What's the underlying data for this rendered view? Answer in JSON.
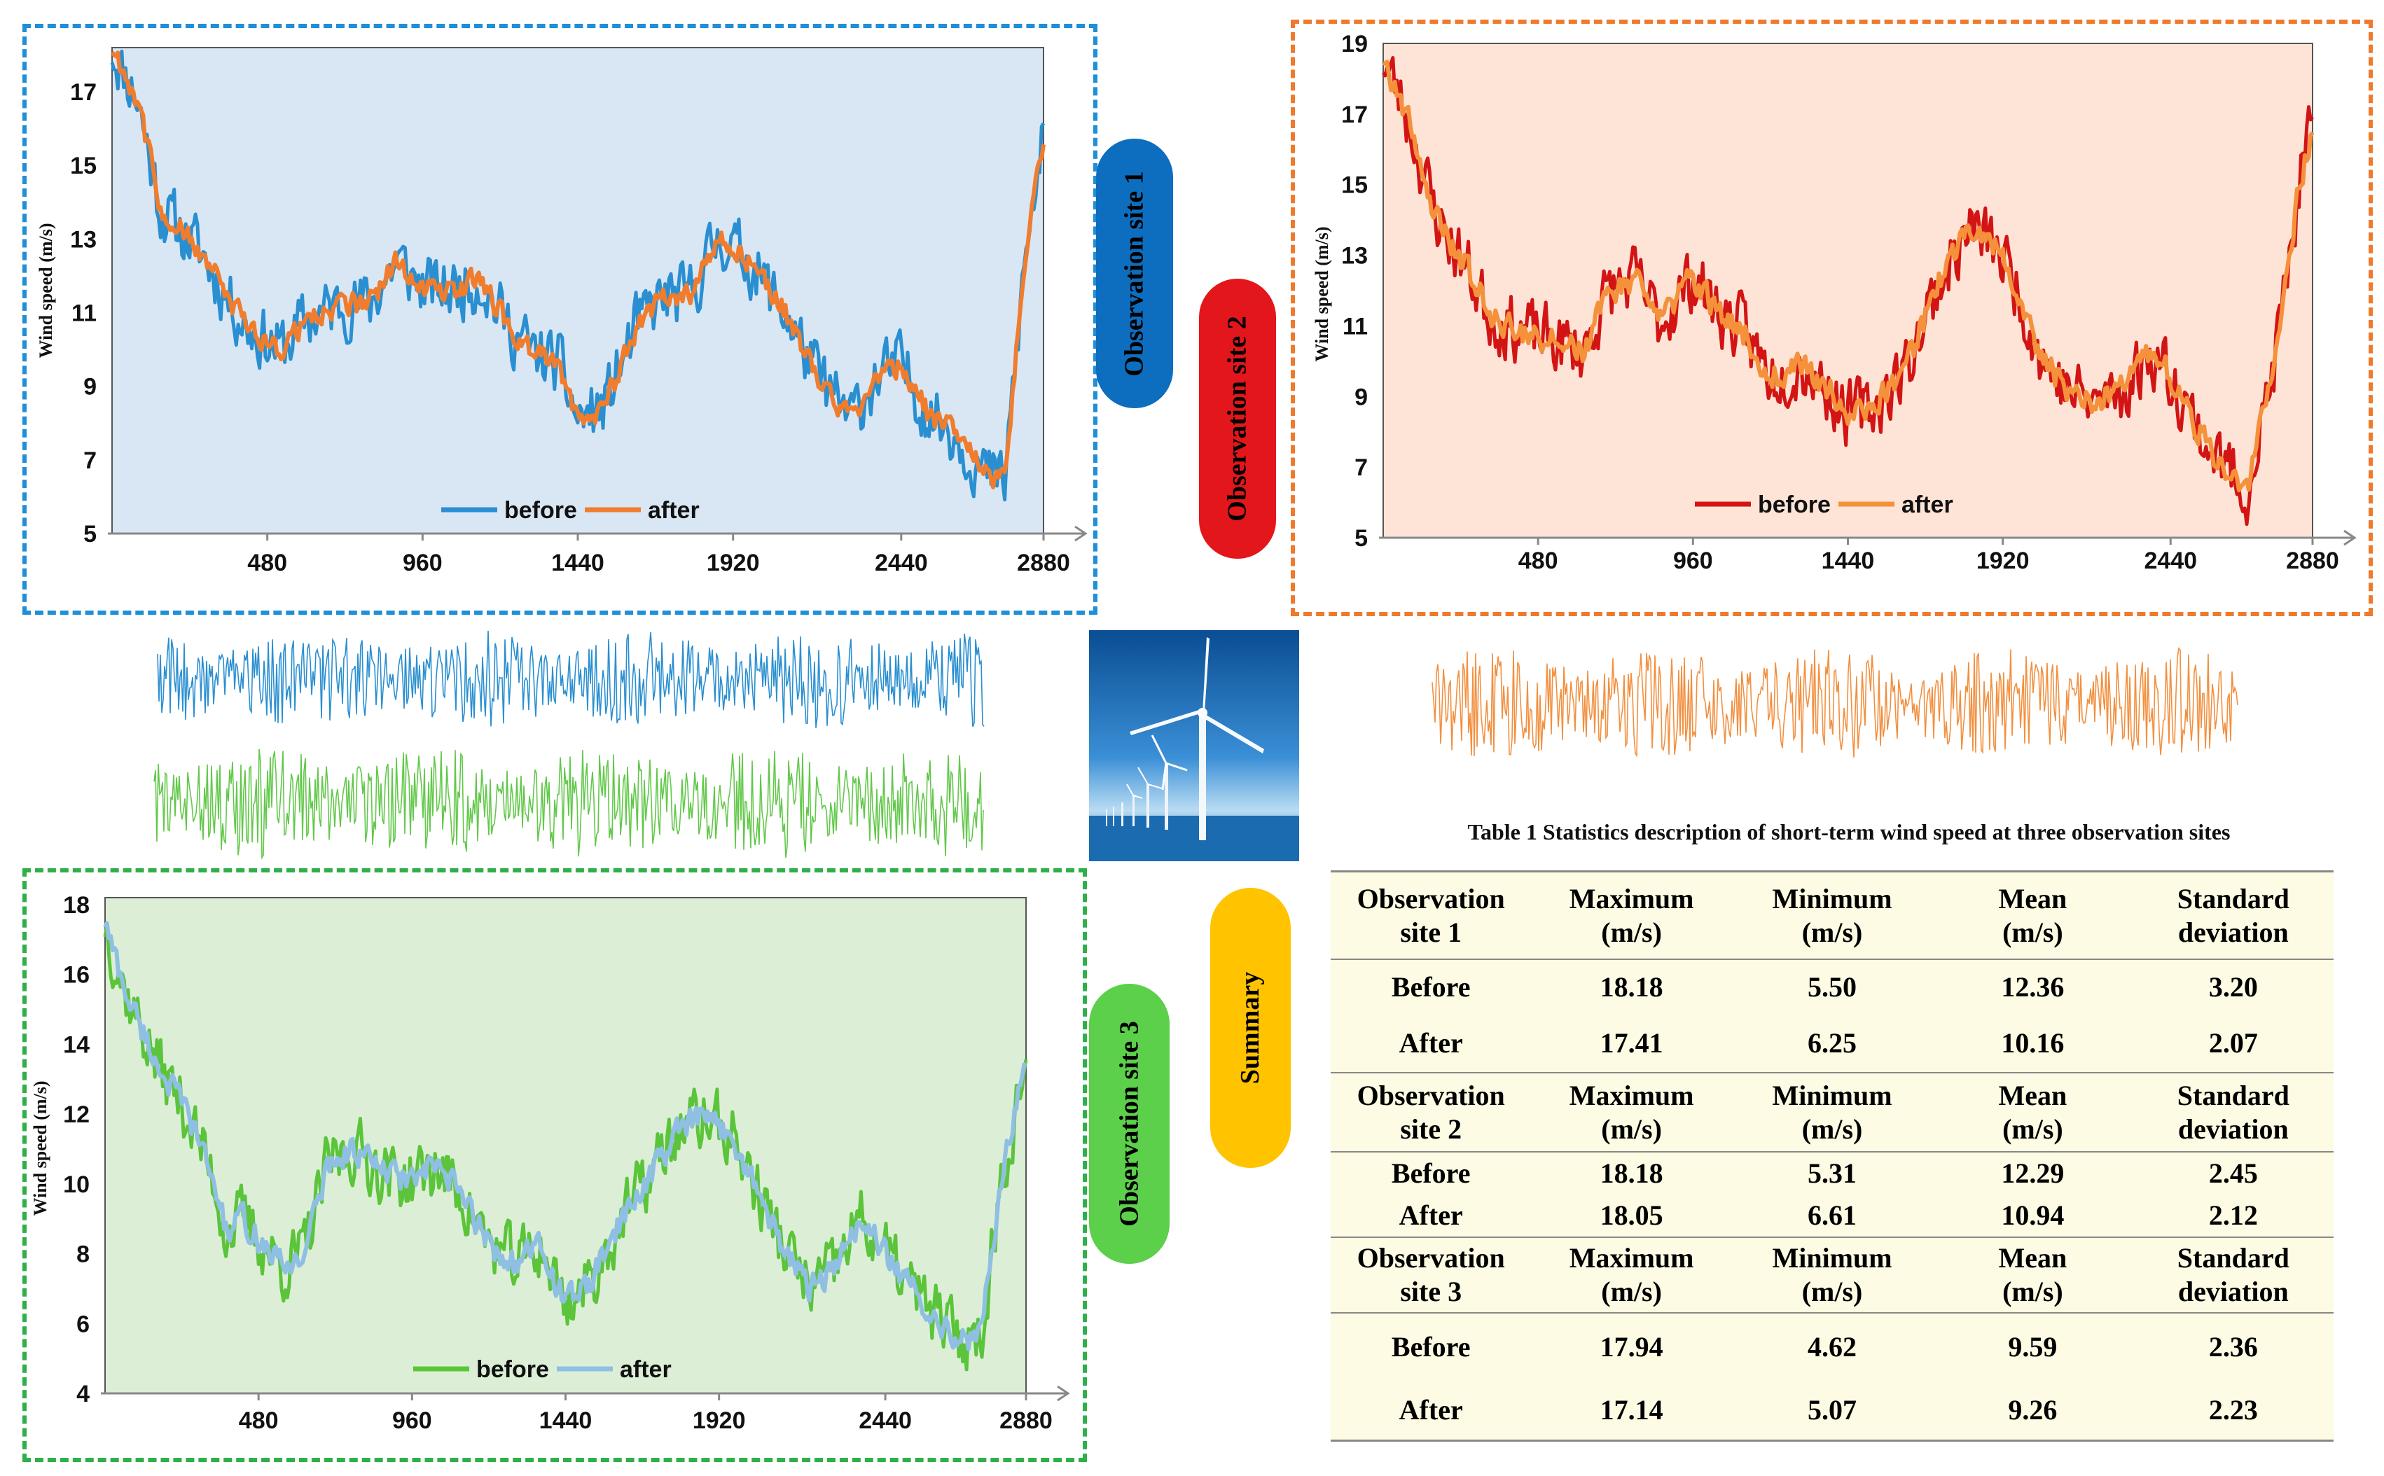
{
  "colors": {
    "site1_before": "#2a8fd0",
    "site1_after": "#f07d2e",
    "site2_before": "#d31414",
    "site2_after": "#f5913a",
    "site3_before": "#5bc43a",
    "site3_after": "#8fbfe3",
    "site1_bg": "#d9e7f5",
    "site2_bg": "#fde4d6",
    "site3_bg": "#dcefd6",
    "site1_border": "#1e8fd8",
    "site2_border": "#ef7a2b",
    "site3_border": "#2faf4a",
    "pill1": "#0d6dbf",
    "pill2": "#e3161b",
    "pill3": "#5ccf4b",
    "pill_summary": "#ffc300",
    "noise_blue": "#2a8fd0",
    "noise_green": "#62c84a",
    "noise_orange": "#f29040",
    "table_bg": "#fdfbe3"
  },
  "labels": {
    "site1": "Observation site 1",
    "site2": "Observation site 2",
    "site3": "Observation site 3",
    "summary": "Summary"
  },
  "chart_data": [
    {
      "type": "line",
      "name": "site1",
      "ylabel": "Wind speed (m/s)",
      "xlabel": "",
      "ylim": [
        5,
        18.2
      ],
      "xlim": [
        0,
        2880
      ],
      "yticks": [
        5,
        7,
        9,
        11,
        13,
        15,
        17
      ],
      "xticks": [
        480,
        960,
        1440,
        1920,
        2440,
        2880
      ],
      "legend_position": "bottom-center",
      "series": [
        {
          "name": "before",
          "values_key": "profile1",
          "noise": 1.2
        },
        {
          "name": "after",
          "values_key": "profile1",
          "noise": 0.45
        }
      ],
      "profile": [
        [
          0,
          18.2
        ],
        [
          80,
          16.8
        ],
        [
          150,
          13.8
        ],
        [
          280,
          12.6
        ],
        [
          350,
          11.5
        ],
        [
          420,
          10.6
        ],
        [
          520,
          10.0
        ],
        [
          600,
          10.8
        ],
        [
          700,
          11.2
        ],
        [
          800,
          11.3
        ],
        [
          880,
          12.4
        ],
        [
          960,
          11.7
        ],
        [
          1040,
          11.6
        ],
        [
          1140,
          11.9
        ],
        [
          1220,
          10.7
        ],
        [
          1300,
          9.9
        ],
        [
          1380,
          9.6
        ],
        [
          1440,
          8.1
        ],
        [
          1520,
          8.4
        ],
        [
          1620,
          10.6
        ],
        [
          1700,
          11.4
        ],
        [
          1780,
          11.4
        ],
        [
          1880,
          13.1
        ],
        [
          1980,
          12.3
        ],
        [
          2080,
          11.0
        ],
        [
          2180,
          9.3
        ],
        [
          2280,
          8.1
        ],
        [
          2360,
          9.2
        ],
        [
          2440,
          9.6
        ],
        [
          2520,
          8.3
        ],
        [
          2600,
          7.8
        ],
        [
          2700,
          6.6
        ],
        [
          2760,
          6.4
        ],
        [
          2820,
          12.2
        ],
        [
          2880,
          15.8
        ]
      ]
    },
    {
      "type": "line",
      "name": "site2",
      "ylabel": "Wind speed (m/s)",
      "xlabel": "",
      "ylim": [
        5,
        19
      ],
      "xlim": [
        0,
        2880
      ],
      "yticks": [
        5,
        7,
        9,
        11,
        13,
        15,
        17,
        19
      ],
      "xticks": [
        480,
        960,
        1440,
        1920,
        2440,
        2880
      ],
      "legend_position": "bottom-center",
      "series": [
        {
          "name": "before",
          "values_key": "profile2",
          "noise": 1.3
        },
        {
          "name": "after",
          "values_key": "profile2",
          "noise": 0.55
        }
      ],
      "profile": [
        [
          0,
          18.6
        ],
        [
          80,
          16.8
        ],
        [
          160,
          14.2
        ],
        [
          260,
          12.6
        ],
        [
          340,
          11.2
        ],
        [
          420,
          10.9
        ],
        [
          520,
          10.6
        ],
        [
          620,
          10.3
        ],
        [
          700,
          12.0
        ],
        [
          780,
          12.3
        ],
        [
          860,
          11.1
        ],
        [
          960,
          12.4
        ],
        [
          1040,
          11.4
        ],
        [
          1120,
          10.8
        ],
        [
          1200,
          9.6
        ],
        [
          1300,
          9.9
        ],
        [
          1380,
          9.2
        ],
        [
          1440,
          8.5
        ],
        [
          1520,
          8.7
        ],
        [
          1620,
          9.8
        ],
        [
          1720,
          12.2
        ],
        [
          1820,
          13.8
        ],
        [
          1900,
          13.2
        ],
        [
          1960,
          12.2
        ],
        [
          2040,
          10.1
        ],
        [
          2120,
          9.2
        ],
        [
          2200,
          8.8
        ],
        [
          2300,
          9.2
        ],
        [
          2380,
          10.3
        ],
        [
          2460,
          9.3
        ],
        [
          2540,
          7.8
        ],
        [
          2600,
          7.1
        ],
        [
          2680,
          6.4
        ],
        [
          2760,
          9.8
        ],
        [
          2840,
          15.0
        ],
        [
          2880,
          16.7
        ]
      ]
    },
    {
      "type": "line",
      "name": "site3",
      "ylabel": "Wind speed (m/s)",
      "xlabel": "",
      "ylim": [
        4,
        18.2
      ],
      "xlim": [
        0,
        2880
      ],
      "yticks": [
        4,
        6,
        8,
        10,
        12,
        14,
        16,
        18
      ],
      "xticks": [
        480,
        960,
        1440,
        1920,
        2440,
        2880
      ],
      "legend_position": "bottom-center",
      "series": [
        {
          "name": "before",
          "values_key": "profile3",
          "noise": 1.3
        },
        {
          "name": "after",
          "values_key": "profile3",
          "noise": 0.55
        }
      ],
      "profile": [
        [
          0,
          17.5
        ],
        [
          60,
          15.6
        ],
        [
          160,
          13.5
        ],
        [
          260,
          12.0
        ],
        [
          340,
          10.1
        ],
        [
          380,
          8.6
        ],
        [
          430,
          9.0
        ],
        [
          500,
          8.2
        ],
        [
          560,
          7.6
        ],
        [
          620,
          8.0
        ],
        [
          700,
          10.6
        ],
        [
          780,
          11.0
        ],
        [
          880,
          10.3
        ],
        [
          960,
          10.1
        ],
        [
          1040,
          10.5
        ],
        [
          1120,
          9.6
        ],
        [
          1200,
          8.3
        ],
        [
          1280,
          7.7
        ],
        [
          1360,
          8.2
        ],
        [
          1440,
          6.6
        ],
        [
          1520,
          7.2
        ],
        [
          1600,
          8.7
        ],
        [
          1700,
          10.2
        ],
        [
          1800,
          11.6
        ],
        [
          1880,
          11.9
        ],
        [
          1960,
          11.4
        ],
        [
          2040,
          9.8
        ],
        [
          2120,
          8.2
        ],
        [
          2200,
          7.0
        ],
        [
          2280,
          7.5
        ],
        [
          2360,
          9.0
        ],
        [
          2440,
          8.0
        ],
        [
          2520,
          7.0
        ],
        [
          2600,
          6.2
        ],
        [
          2680,
          5.5
        ],
        [
          2740,
          5.7
        ],
        [
          2800,
          10.0
        ],
        [
          2880,
          13.6
        ]
      ]
    }
  ],
  "table": {
    "title": "Table 1 Statistics description of short-term wind speed at three observation sites",
    "columns": [
      "Maximum\n(m/s)",
      "Minimum\n(m/s)",
      "Mean\n(m/s)",
      "Standard\ndeviation"
    ],
    "sites": [
      {
        "header": "Observation\nsite 1",
        "rows": [
          {
            "label": "Before",
            "values": [
              "18.18",
              "5.50",
              "12.36",
              "3.20"
            ]
          },
          {
            "label": "After",
            "values": [
              "17.41",
              "6.25",
              "10.16",
              "2.07"
            ]
          }
        ]
      },
      {
        "header": "Observation\nsite 2",
        "rows": [
          {
            "label": "Before",
            "values": [
              "18.18",
              "5.31",
              "12.29",
              "2.45"
            ]
          },
          {
            "label": "After",
            "values": [
              "18.05",
              "6.61",
              "10.94",
              "2.12"
            ]
          }
        ]
      },
      {
        "header": "Observation\nsite 3",
        "rows": [
          {
            "label": "Before",
            "values": [
              "17.94",
              "4.62",
              "9.59",
              "2.36"
            ]
          },
          {
            "label": "After",
            "values": [
              "17.14",
              "5.07",
              "9.26",
              "2.23"
            ]
          }
        ]
      }
    ]
  }
}
